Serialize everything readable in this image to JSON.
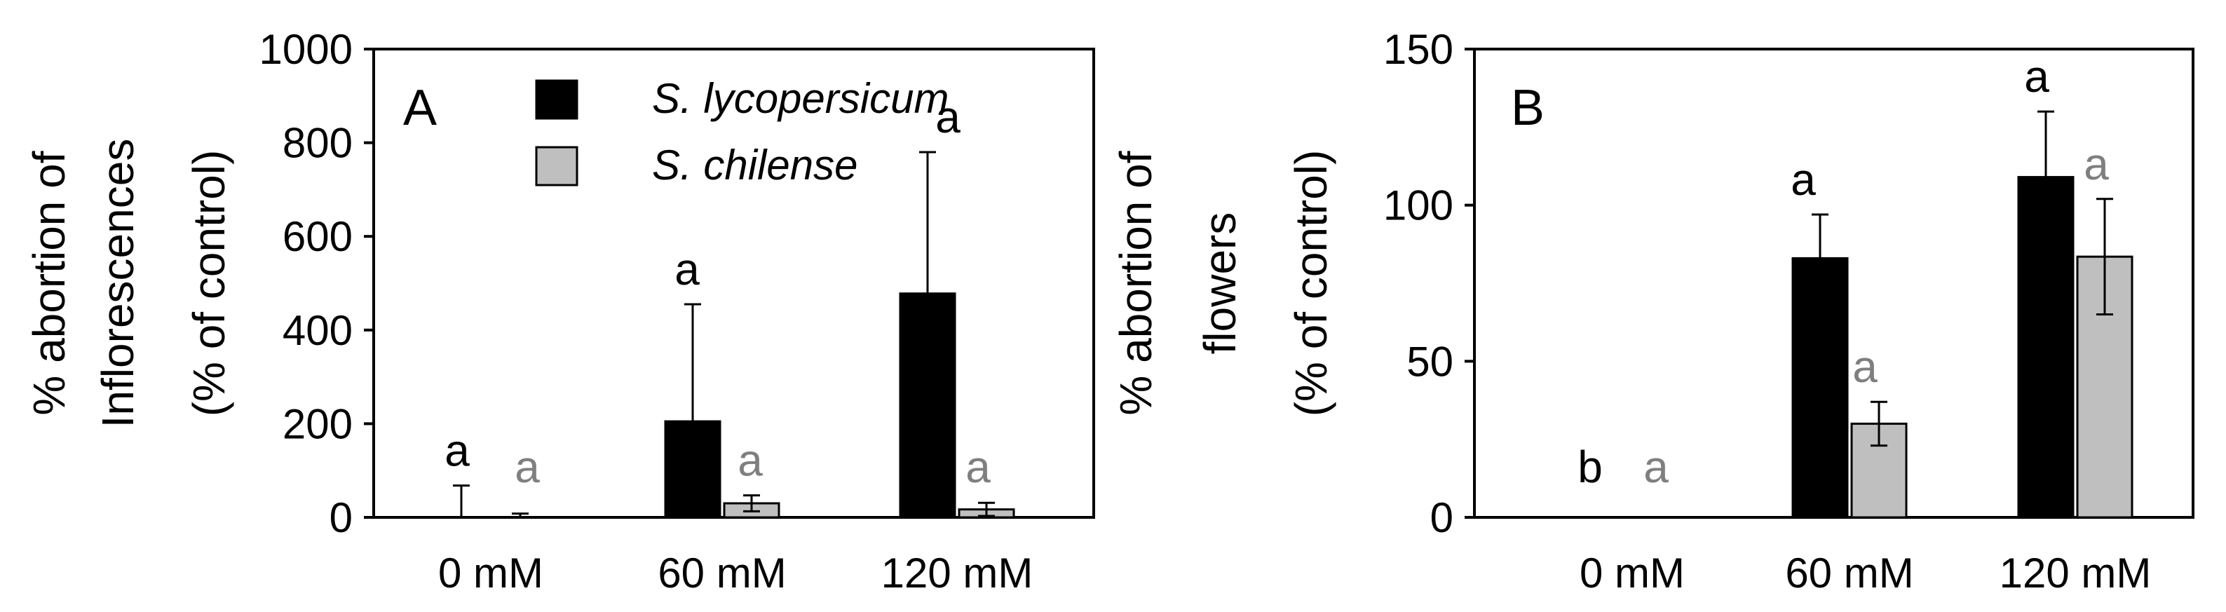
{
  "chart_data": [
    {
      "type": "bar",
      "panel_label": "A",
      "ylabel": [
        "% abortion of",
        "Inflorescences",
        "(% of control)"
      ],
      "categories": [
        "0 mM",
        "60 mM",
        "120 mM"
      ],
      "ylim": [
        0,
        1000
      ],
      "yticks": [
        0,
        200,
        400,
        600,
        800,
        1000
      ],
      "ytick_labels": [
        "0",
        "200",
        "400",
        "600",
        "800",
        "1000"
      ],
      "series": [
        {
          "name": "S. lycopersicum",
          "color": "#000000",
          "values": [
            0,
            205,
            478
          ],
          "errors": [
            68,
            250,
            302
          ],
          "letters": [
            "a",
            "a",
            "a"
          ]
        },
        {
          "name": "S. chilense",
          "color": "#bfbfbf",
          "values": [
            0,
            30,
            17
          ],
          "errors": [
            8,
            17,
            14
          ],
          "letters": [
            "a",
            "a",
            "a"
          ]
        }
      ],
      "legend": "top-center",
      "grid": false
    },
    {
      "type": "bar",
      "panel_label": "B",
      "ylabel": [
        "% abortion of",
        "flowers",
        "(% of control)"
      ],
      "categories": [
        "0 mM",
        "60 mM",
        "120 mM"
      ],
      "ylim": [
        0,
        150
      ],
      "yticks": [
        0,
        50,
        100,
        150
      ],
      "ytick_labels": [
        "0",
        "50",
        "100",
        "150"
      ],
      "series": [
        {
          "name": "S. lycopersicum",
          "color": "#000000",
          "values": [
            0,
            83,
            109
          ],
          "errors": [
            0,
            14,
            21
          ],
          "letters": [
            "b",
            "a",
            "a"
          ]
        },
        {
          "name": "S. chilense",
          "color": "#bfbfbf",
          "values": [
            0,
            30,
            83.5
          ],
          "errors": [
            0,
            7,
            18.5
          ],
          "letters": [
            "a",
            "a",
            "a"
          ]
        }
      ],
      "grid": false
    }
  ],
  "colors": {
    "letter_dark": "#000000",
    "letter_gray": "#7f7f7f"
  }
}
